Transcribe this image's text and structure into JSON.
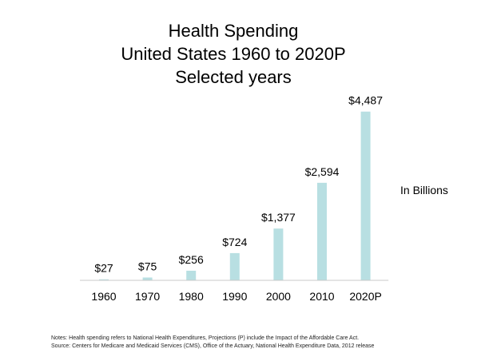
{
  "chart_data": {
    "type": "bar",
    "title": "Health Spending",
    "subtitle_line1": "United States 1960 to 2020P",
    "subtitle_line2": "Selected years",
    "categories": [
      "1960",
      "1970",
      "1980",
      "1990",
      "2000",
      "2010",
      "2020P"
    ],
    "values": [
      27,
      75,
      256,
      724,
      1377,
      2594,
      4487
    ],
    "value_labels": [
      "$27",
      "$75",
      "$256",
      "$724",
      "$1,377",
      "$2,594",
      "$4,487"
    ],
    "ylabel": "In Billions",
    "ylim": [
      0,
      4800
    ],
    "bar_color": "#b8dfe2",
    "grid": false,
    "legend": "none"
  },
  "notes": {
    "line1": "Notes: Health spending refers to National Health Expenditures, Projections (P) include the Impact of the Affordable Care Act.",
    "line2": "Source: Centers for Medicare and Medicaid Services (CMS), Office of the Actuary, National Health Expenditure Data, 2012 release"
  }
}
